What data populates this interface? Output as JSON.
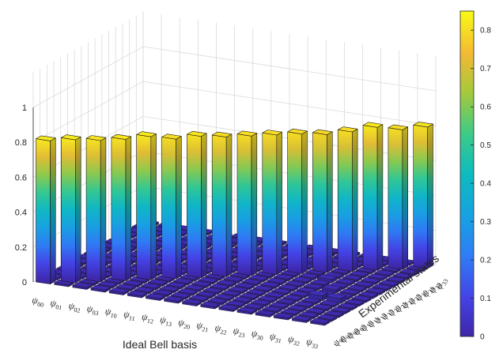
{
  "chart_data": {
    "type": "bar3d",
    "xlabel": "Ideal Bell basis",
    "ylabel": "Experimental states",
    "x_categories": [
      "00",
      "01",
      "02",
      "03",
      "10",
      "11",
      "12",
      "13",
      "20",
      "21",
      "22",
      "23",
      "30",
      "31",
      "32",
      "33"
    ],
    "y_categories": [
      "00",
      "01",
      "02",
      "03",
      "10",
      "11",
      "12",
      "13",
      "20",
      "21",
      "22",
      "23",
      "30",
      "31",
      "32",
      "33"
    ],
    "category_symbol": "ψ",
    "zlim": [
      0,
      1
    ],
    "zticks": [
      0,
      0.2,
      0.4,
      0.6,
      0.8,
      1
    ],
    "diagonal_values": [
      0.82,
      0.82,
      0.81,
      0.81,
      0.82,
      0.8,
      0.81,
      0.8,
      0.8,
      0.8,
      0.8,
      0.79,
      0.8,
      0.82,
      0.8,
      0.81
    ],
    "off_diagonal_typical": 0.01,
    "off_diagonal_highlights": [
      {
        "x": "31",
        "y": "11",
        "value": 0.03
      },
      {
        "x": "32",
        "y": "11",
        "value": 0.03
      },
      {
        "x": "31",
        "y": "13",
        "value": 0.02
      },
      {
        "x": "30",
        "y": "21",
        "value": 0.02
      },
      {
        "x": "22",
        "y": "30",
        "value": 0.02
      }
    ],
    "colormap": "parula",
    "colorbar": {
      "limits": [
        0,
        0.85
      ],
      "ticks": [
        0,
        0.1,
        0.2,
        0.3,
        0.4,
        0.5,
        0.6,
        0.7,
        0.8
      ]
    },
    "grid": true
  }
}
